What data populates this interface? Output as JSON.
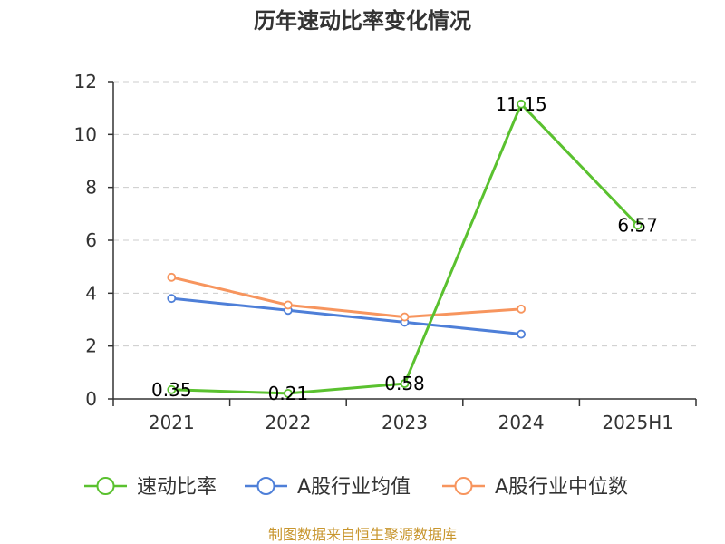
{
  "chart_data": {
    "type": "line",
    "title": "历年速动比率变化情况",
    "categories": [
      "2021",
      "2022",
      "2023",
      "2024",
      "2025H1"
    ],
    "ylim": [
      0,
      12
    ],
    "yticks": [
      "0",
      "2",
      "4",
      "6",
      "8",
      "10",
      "12"
    ],
    "grid": true,
    "legend_position": "bottom",
    "series": [
      {
        "name": "速动比率",
        "color": "#5ac12f",
        "values": [
          0.35,
          0.21,
          0.58,
          11.15,
          6.57
        ],
        "labels": [
          "0.35",
          "0.21",
          "0.58",
          "11.15",
          "6.57"
        ]
      },
      {
        "name": "A股行业均值",
        "color": "#4e7fd8",
        "values": [
          3.8,
          3.35,
          2.9,
          2.45,
          null
        ]
      },
      {
        "name": "A股行业中位数",
        "color": "#f7955e",
        "values": [
          4.6,
          3.55,
          3.1,
          3.4,
          null
        ]
      }
    ]
  },
  "source": {
    "text": "制图数据来自恒生聚源数据库",
    "color": "#c8962e"
  }
}
